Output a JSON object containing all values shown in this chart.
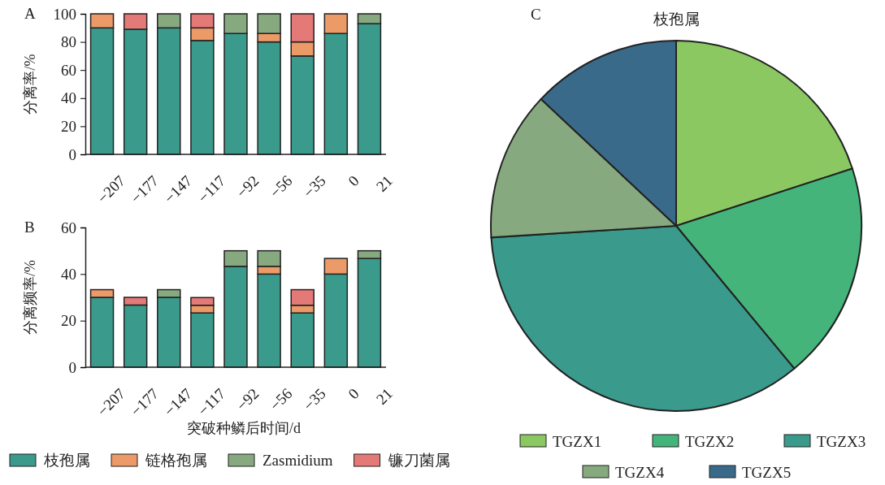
{
  "chart_data": [
    {
      "type": "bar",
      "stacked": true,
      "ylabel": "分离率/%",
      "annotations": [
        "A"
      ],
      "categories": [
        "−207",
        "−177",
        "−147",
        "−117",
        "−92",
        "−56",
        "−35",
        "0",
        "21"
      ],
      "ylim": [
        0,
        100
      ],
      "yticks": [
        0,
        20,
        40,
        60,
        80,
        100
      ],
      "legend": false,
      "series": [
        {
          "color": "#3a9a8c",
          "values": [
            90,
            89,
            90,
            81,
            86,
            80,
            70,
            86,
            93
          ]
        },
        {
          "color": "#eb9a68",
          "values": [
            10,
            null,
            null,
            9,
            null,
            6,
            10,
            14,
            null
          ]
        },
        {
          "color": "#86a97f",
          "values": [
            null,
            null,
            10,
            null,
            14,
            14,
            null,
            null,
            7
          ]
        },
        {
          "color": "#e47a78",
          "values": [
            null,
            11,
            null,
            10,
            null,
            null,
            20,
            null,
            null
          ]
        }
      ]
    },
    {
      "type": "bar",
      "stacked": true,
      "ylabel": "分离频率/%",
      "xlabel": "突破种鳞后时间/d",
      "annotations": [
        "B"
      ],
      "categories": [
        "−207",
        "−177",
        "−147",
        "−117",
        "−92",
        "−56",
        "−35",
        "0",
        "21"
      ],
      "ylim": [
        0,
        60
      ],
      "yticks": [
        0,
        20,
        40,
        60
      ],
      "legend": "bottom",
      "series": [
        {
          "name": "枝孢属",
          "color": "#3a9a8c",
          "values": [
            30,
            26.7,
            30,
            23.3,
            43.3,
            40,
            23.3,
            40,
            46.7
          ]
        },
        {
          "name": "链格孢属",
          "color": "#eb9a68",
          "values": [
            3.3,
            null,
            null,
            3.3,
            null,
            3.3,
            3.3,
            6.7,
            null
          ]
        },
        {
          "name": "Zasmidium",
          "color": "#86a97f",
          "values": [
            null,
            null,
            3.3,
            null,
            6.7,
            6.7,
            null,
            null,
            3.3
          ]
        },
        {
          "name": "镰刀菌属",
          "color": "#e47a78",
          "values": [
            null,
            3.3,
            null,
            3.3,
            null,
            null,
            6.7,
            null,
            null
          ]
        }
      ]
    },
    {
      "type": "pie",
      "title": "枝孢属",
      "annotations": [
        "C"
      ],
      "legend": "bottom",
      "categories": [
        "TGZX1",
        "TGZX2",
        "TGZX3",
        "TGZX4",
        "TGZX5"
      ],
      "values": [
        20,
        19,
        35,
        13,
        13
      ],
      "colors": [
        "#8bc862",
        "#44b47b",
        "#3a9a8c",
        "#86a97f",
        "#3a6a8a"
      ]
    }
  ]
}
